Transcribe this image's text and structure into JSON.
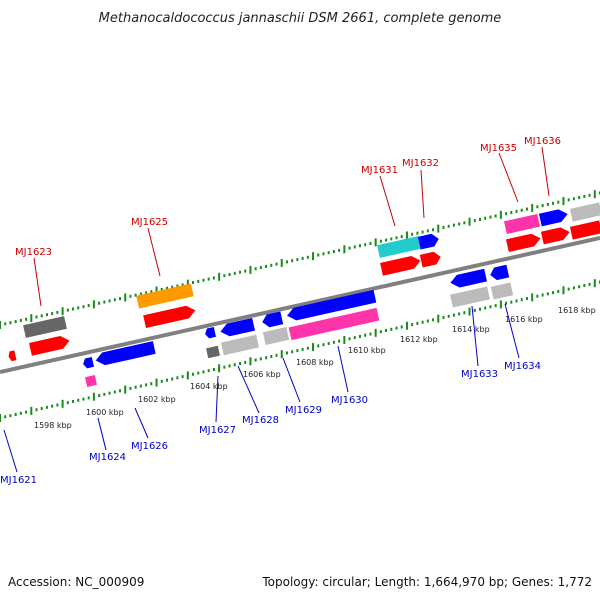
{
  "title": "Methanocaldococcus jannaschii DSM 2661, complete genome",
  "footer": {
    "accession": "Accession: NC_000909",
    "stats": "Topology: circular; Length: 1,664,970 bp; Genes: 1,772"
  },
  "colors": {
    "backbone": "#808080",
    "tick": "#1a8a1a",
    "top_label": "#cc0000",
    "bottom_label": "#0000cc",
    "red": "#ff0000",
    "blue": "#0000ff",
    "orange": "#ff9900",
    "magenta": "#ff33aa",
    "cyan": "#22cccc",
    "gray_dark": "#666666",
    "gray_light": "#bbbbbb"
  },
  "kbp_labels": [
    "1598 kbp",
    "1600 kbp",
    "1602 kbp",
    "1604 kbp",
    "1606 kbp",
    "1608 kbp",
    "1610 kbp",
    "1612 kbp",
    "1614 kbp",
    "1616 kbp",
    "1618 kbp"
  ],
  "top_labels": [
    "MJ1623",
    "MJ1625",
    "MJ1631",
    "MJ1632",
    "MJ1635",
    "MJ1636"
  ],
  "bottom_labels": [
    "MJ1621",
    "MJ1624",
    "MJ1626",
    "MJ1627",
    "MJ1628",
    "MJ1629",
    "MJ1630",
    "MJ1633",
    "MJ1634"
  ]
}
